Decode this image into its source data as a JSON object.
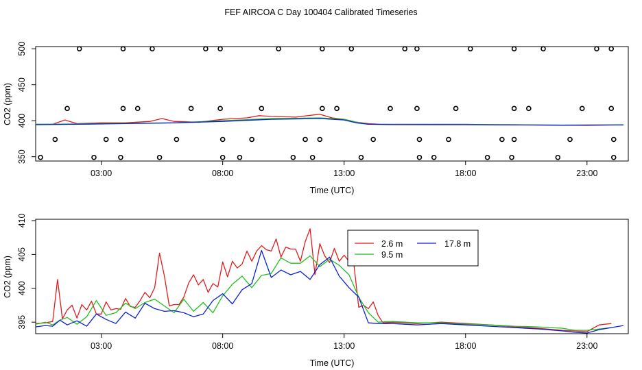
{
  "title": "FEF AIRCOA C  Day 100404  Calibrated Timeseries",
  "colors": {
    "red": "#e31a1c",
    "green": "#1fbf1f",
    "blue": "#0b1fd6",
    "axis": "#000000"
  },
  "chart_data": [
    {
      "type": "scatter+line",
      "xlabel": "Time (UTC)",
      "ylabel": "CO2 (ppm)",
      "xlim": [
        0.3,
        24.7
      ],
      "ylim": [
        344,
        503
      ],
      "x_ticks": [
        3,
        8,
        13,
        18,
        23
      ],
      "x_tick_labels": [
        "03:00",
        "08:00",
        "13:00",
        "18:00",
        "23:00"
      ],
      "y_ticks": [
        350,
        400,
        450,
        500
      ],
      "y_tick_labels": [
        "350",
        "400",
        "450",
        "500"
      ],
      "grid": false,
      "points": [
        {
          "x": 2.1,
          "y": 500
        },
        {
          "x": 3.9,
          "y": 500
        },
        {
          "x": 5.1,
          "y": 500
        },
        {
          "x": 7.3,
          "y": 500
        },
        {
          "x": 7.9,
          "y": 500
        },
        {
          "x": 10.3,
          "y": 500
        },
        {
          "x": 12.1,
          "y": 500
        },
        {
          "x": 13.3,
          "y": 500
        },
        {
          "x": 15.5,
          "y": 500
        },
        {
          "x": 16.0,
          "y": 500
        },
        {
          "x": 18.2,
          "y": 500
        },
        {
          "x": 20.0,
          "y": 500
        },
        {
          "x": 21.2,
          "y": 500
        },
        {
          "x": 23.4,
          "y": 500
        },
        {
          "x": 24.0,
          "y": 500
        },
        {
          "x": 1.6,
          "y": 417
        },
        {
          "x": 3.9,
          "y": 417
        },
        {
          "x": 4.5,
          "y": 417
        },
        {
          "x": 6.7,
          "y": 417
        },
        {
          "x": 7.9,
          "y": 417
        },
        {
          "x": 9.6,
          "y": 417
        },
        {
          "x": 12.1,
          "y": 417
        },
        {
          "x": 12.7,
          "y": 417
        },
        {
          "x": 14.9,
          "y": 417
        },
        {
          "x": 16.0,
          "y": 417
        },
        {
          "x": 17.6,
          "y": 417
        },
        {
          "x": 20.0,
          "y": 417
        },
        {
          "x": 20.6,
          "y": 417
        },
        {
          "x": 22.8,
          "y": 417
        },
        {
          "x": 24.0,
          "y": 417
        },
        {
          "x": 1.1,
          "y": 374
        },
        {
          "x": 3.2,
          "y": 374
        },
        {
          "x": 3.8,
          "y": 374
        },
        {
          "x": 6.1,
          "y": 374
        },
        {
          "x": 8.0,
          "y": 374
        },
        {
          "x": 9.2,
          "y": 374
        },
        {
          "x": 11.4,
          "y": 374
        },
        {
          "x": 12.0,
          "y": 374
        },
        {
          "x": 14.2,
          "y": 374
        },
        {
          "x": 16.1,
          "y": 374
        },
        {
          "x": 17.3,
          "y": 374
        },
        {
          "x": 19.5,
          "y": 374
        },
        {
          "x": 20.0,
          "y": 374
        },
        {
          "x": 22.3,
          "y": 374
        },
        {
          "x": 24.1,
          "y": 374
        },
        {
          "x": 0.5,
          "y": 349
        },
        {
          "x": 2.7,
          "y": 349
        },
        {
          "x": 3.8,
          "y": 349
        },
        {
          "x": 5.4,
          "y": 349
        },
        {
          "x": 8.0,
          "y": 349
        },
        {
          "x": 8.7,
          "y": 349
        },
        {
          "x": 10.9,
          "y": 349
        },
        {
          "x": 11.7,
          "y": 349
        },
        {
          "x": 13.7,
          "y": 349
        },
        {
          "x": 16.1,
          "y": 349
        },
        {
          "x": 16.7,
          "y": 349
        },
        {
          "x": 18.9,
          "y": 349
        },
        {
          "x": 19.9,
          "y": 349
        },
        {
          "x": 21.8,
          "y": 349
        },
        {
          "x": 24.1,
          "y": 349
        }
      ],
      "series": [
        {
          "color": "red",
          "x": [
            0.3,
            1.0,
            1.5,
            2.0,
            3.0,
            4.0,
            5.0,
            5.5,
            6.0,
            7.0,
            8.0,
            9.0,
            9.5,
            10.0,
            11.0,
            12.0,
            12.5,
            13.0,
            13.5,
            14.0,
            14.5,
            15.0,
            16.0,
            17.0,
            18.0,
            19.0,
            20.0,
            21.0,
            22.0,
            23.0,
            24.0,
            24.5
          ],
          "y": [
            395,
            395,
            401,
            396,
            397,
            397,
            399,
            403,
            399,
            398,
            402,
            404,
            407,
            406,
            405,
            409,
            404,
            402,
            398,
            396,
            395,
            395,
            395,
            395,
            395,
            394.5,
            394.5,
            394,
            393.8,
            393.5,
            394,
            394.3
          ]
        },
        {
          "color": "green",
          "x": [
            0.3,
            2,
            4,
            6,
            8,
            10,
            11,
            12,
            13,
            13.5,
            14,
            15,
            18,
            20,
            22,
            24.5
          ],
          "y": [
            395,
            395.5,
            396.5,
            397,
            400,
            403,
            403.5,
            404,
            402,
            398,
            395,
            394.8,
            394.7,
            394.3,
            394,
            394.3
          ]
        },
        {
          "color": "blue",
          "x": [
            0.3,
            2,
            4,
            6,
            8,
            10,
            11,
            12,
            13,
            13.5,
            14,
            15,
            18,
            20,
            22,
            24.5
          ],
          "y": [
            394.5,
            395,
            396,
            397,
            399,
            402,
            402.5,
            403,
            401,
            397,
            395,
            394.6,
            394.5,
            394.2,
            393.8,
            394.2
          ]
        }
      ]
    },
    {
      "type": "line",
      "xlabel": "Time (UTC)",
      "ylabel": "CO2 (ppm)",
      "xlim": [
        0.3,
        24.7
      ],
      "ylim": [
        393.3,
        410.2
      ],
      "x_ticks": [
        3,
        8,
        13,
        18,
        23
      ],
      "x_tick_labels": [
        "03:00",
        "08:00",
        "13:00",
        "18:00",
        "23:00"
      ],
      "y_ticks": [
        395,
        400,
        405,
        410
      ],
      "y_tick_labels": [
        "395",
        "400",
        "405",
        "410"
      ],
      "grid": false,
      "legend_position": "top-right",
      "series": [
        {
          "name": "2.6 m",
          "color": "red",
          "x": [
            0.3,
            0.7,
            1.0,
            1.2,
            1.4,
            1.6,
            1.8,
            2.0,
            2.2,
            2.4,
            2.6,
            2.8,
            3.0,
            3.2,
            3.4,
            3.6,
            3.8,
            4.0,
            4.2,
            4.4,
            4.6,
            4.8,
            5.0,
            5.2,
            5.4,
            5.6,
            5.8,
            6.0,
            6.2,
            6.4,
            6.6,
            6.8,
            7.0,
            7.2,
            7.4,
            7.6,
            7.8,
            8.0,
            8.2,
            8.4,
            8.6,
            8.8,
            9.0,
            9.2,
            9.4,
            9.6,
            9.8,
            10.0,
            10.2,
            10.4,
            10.6,
            10.8,
            11.0,
            11.2,
            11.4,
            11.6,
            11.8,
            12.0,
            12.2,
            12.4,
            12.6,
            12.8,
            13.0,
            13.2,
            13.4,
            13.6,
            13.8,
            14.0,
            14.2,
            14.4,
            14.6,
            15.0,
            16.0,
            17.0,
            18.0,
            19.0,
            20.0,
            21.0,
            22.0,
            23.0,
            23.5,
            24.0
          ],
          "y": [
            394.8,
            394.9,
            395.1,
            401.3,
            395.5,
            396.8,
            397.5,
            395.6,
            397.6,
            396.8,
            398.1,
            396.2,
            396.2,
            398.0,
            396.8,
            397.0,
            396.9,
            398.5,
            397.3,
            397.2,
            398.2,
            399.4,
            398.6,
            400.1,
            405.2,
            401.8,
            397.4,
            397.6,
            397.6,
            398.7,
            400.8,
            402.0,
            400.5,
            401.3,
            399.4,
            400.7,
            400.2,
            403.9,
            401.7,
            404.0,
            403.0,
            403.6,
            405.5,
            404.0,
            405.5,
            406.3,
            405.7,
            405.5,
            407.3,
            404.6,
            406.1,
            405.8,
            405.8,
            404.0,
            406.9,
            408.8,
            402.0,
            406.6,
            404.8,
            403.8,
            405.9,
            404.0,
            404.9,
            404.0,
            403.6,
            397.2,
            397.5,
            397.0,
            398.0,
            396.0,
            394.9,
            395.0,
            394.8,
            395.0,
            394.8,
            394.6,
            394.3,
            394.1,
            393.8,
            393.6,
            394.6,
            394.8
          ]
        },
        {
          "name": "9.5 m",
          "color": "green",
          "x": [
            0.3,
            0.7,
            1.0,
            1.3,
            1.6,
            2.0,
            2.4,
            2.8,
            3.2,
            3.6,
            4.0,
            4.4,
            4.8,
            5.2,
            5.6,
            6.0,
            6.4,
            6.8,
            7.2,
            7.6,
            8.0,
            8.4,
            8.8,
            9.2,
            9.6,
            10.0,
            10.4,
            10.8,
            11.2,
            11.6,
            12.0,
            12.4,
            12.8,
            13.2,
            13.6,
            14.0,
            14.4,
            15.0,
            16.0,
            17.0,
            18.0,
            19.0,
            20.0,
            21.0,
            22.0,
            22.5,
            23.0,
            23.5,
            24.0
          ],
          "y": [
            394.7,
            395.0,
            394.6,
            395.3,
            395.7,
            394.7,
            395.8,
            398.2,
            396.0,
            396.4,
            397.8,
            397.0,
            397.9,
            398.4,
            397.4,
            396.4,
            398.4,
            396.6,
            397.9,
            396.4,
            398.9,
            400.6,
            401.8,
            400.1,
            401.9,
            402.2,
            404.5,
            403.7,
            403.7,
            404.8,
            403.2,
            404.3,
            403.4,
            402.0,
            398.7,
            396.4,
            395.0,
            395.1,
            394.9,
            394.9,
            394.7,
            394.6,
            394.4,
            394.3,
            394.1,
            393.8,
            393.8,
            394.0,
            394.2
          ]
        },
        {
          "name": "17.8 m",
          "color": "blue",
          "x": [
            0.3,
            0.7,
            1.0,
            1.3,
            1.6,
            2.0,
            2.4,
            2.8,
            3.2,
            3.6,
            4.0,
            4.4,
            4.8,
            5.2,
            5.6,
            6.0,
            6.4,
            6.8,
            7.2,
            7.6,
            8.0,
            8.4,
            8.8,
            9.2,
            9.6,
            10.0,
            10.4,
            10.8,
            11.2,
            11.6,
            12.0,
            12.4,
            12.8,
            13.2,
            13.6,
            14.0,
            14.4,
            15.0,
            16.0,
            17.0,
            18.0,
            19.0,
            20.0,
            21.0,
            22.0,
            22.5,
            23.0,
            23.5,
            24.0,
            24.5
          ],
          "y": [
            394.3,
            394.5,
            394.4,
            395.3,
            394.6,
            395.2,
            394.4,
            396.2,
            395.4,
            394.8,
            396.5,
            395.6,
            397.8,
            397.0,
            396.6,
            396.7,
            396.4,
            395.8,
            396.2,
            398.2,
            399.2,
            397.7,
            399.8,
            400.7,
            405.6,
            401.6,
            402.7,
            402.0,
            402.5,
            401.3,
            403.5,
            404.6,
            401.8,
            400.1,
            398.7,
            394.9,
            394.8,
            394.8,
            394.6,
            394.8,
            394.6,
            394.4,
            394.2,
            394.0,
            393.7,
            393.5,
            393.4,
            393.9,
            394.2,
            394.5
          ]
        }
      ]
    }
  ]
}
